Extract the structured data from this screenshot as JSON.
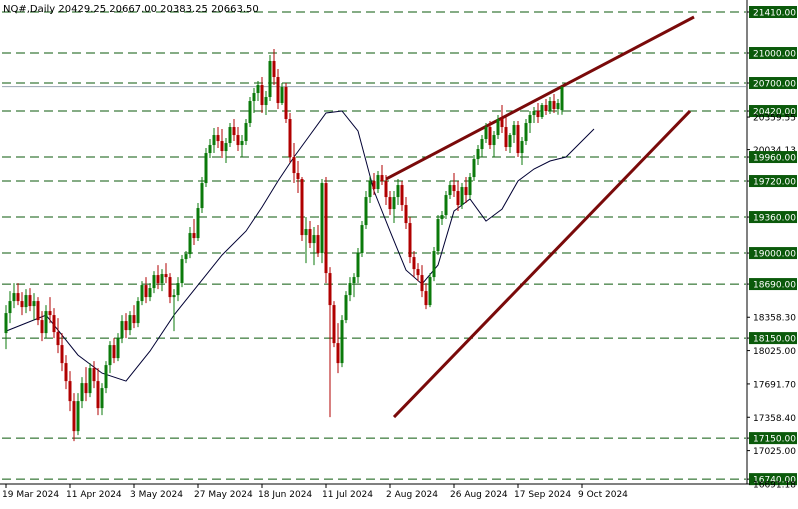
{
  "chart_data": {
    "type": "candlestick",
    "title": "NQ#,Daily  20429.25 20667.00 20383.25 20663.50",
    "xlabel": "",
    "ylabel": "",
    "ylim": [
      16691.18,
      21510
    ],
    "grid": false,
    "colors": {
      "bull": "#0b7a0b",
      "bear": "#b00000",
      "level_line": "#0b5a0b",
      "level_label_bg": "#0b5a0b",
      "trendline": "#7a0a0a",
      "moving_average": "#000033"
    },
    "price_axis_ticks": [
      "21410.00",
      "21000.00",
      "20700.00",
      "20420.00",
      "20359.55",
      "20034.13",
      "19960.00",
      "19720.00",
      "19360.00",
      "19000.00",
      "18690.00",
      "18358.30",
      "18150.00",
      "18025.00",
      "17691.70",
      "17358.40",
      "17150.00",
      "17025.00",
      "16740.00",
      "16691.18"
    ],
    "level_lines": [
      21410,
      21000,
      20700,
      20420,
      19960,
      19720,
      19360,
      19000,
      18690,
      18150,
      17150,
      16740
    ],
    "current_price": 20663.5,
    "x_tick_labels": [
      "19 Mar 2024",
      "11 Apr 2024",
      "3 May 2024",
      "27 May 2024",
      "18 Jun 2024",
      "11 Jul 2024",
      "2 Aug 2024",
      "26 Aug 2024",
      "17 Sep 2024",
      "9 Oct 2024"
    ],
    "x_tick_bar_index": [
      0,
      16,
      32,
      48,
      64,
      80,
      96,
      112,
      128,
      144
    ],
    "bar_count": 148,
    "trendlines": [
      {
        "from": {
          "bar": 95,
          "price": 19740
        },
        "to": {
          "bar": 172,
          "price": 21360
        }
      },
      {
        "from": {
          "bar": 97,
          "price": 17360
        },
        "to": {
          "bar": 171,
          "price": 20420
        }
      }
    ],
    "moving_average": [
      [
        0,
        18220
      ],
      [
        10,
        18380
      ],
      [
        18,
        17980
      ],
      [
        24,
        17800
      ],
      [
        30,
        17720
      ],
      [
        36,
        18020
      ],
      [
        42,
        18380
      ],
      [
        48,
        18680
      ],
      [
        54,
        18980
      ],
      [
        60,
        19220
      ],
      [
        64,
        19460
      ],
      [
        68,
        19720
      ],
      [
        72,
        19960
      ],
      [
        76,
        20180
      ],
      [
        80,
        20400
      ],
      [
        84,
        20420
      ],
      [
        88,
        20220
      ],
      [
        92,
        19620
      ],
      [
        96,
        19220
      ],
      [
        100,
        18830
      ],
      [
        104,
        18690
      ],
      [
        108,
        18880
      ],
      [
        112,
        19420
      ],
      [
        116,
        19540
      ],
      [
        120,
        19320
      ],
      [
        124,
        19440
      ],
      [
        128,
        19720
      ],
      [
        132,
        19840
      ],
      [
        136,
        19920
      ],
      [
        140,
        19960
      ],
      [
        144,
        20120
      ],
      [
        147,
        20240
      ]
    ],
    "candles": [
      [
        18200,
        18480,
        18040,
        18400
      ],
      [
        18400,
        18620,
        18300,
        18520
      ],
      [
        18520,
        18700,
        18450,
        18600
      ],
      [
        18600,
        18700,
        18480,
        18520
      ],
      [
        18520,
        18610,
        18380,
        18460
      ],
      [
        18460,
        18640,
        18400,
        18580
      ],
      [
        18580,
        18650,
        18420,
        18470
      ],
      [
        18470,
        18600,
        18330,
        18520
      ],
      [
        18520,
        18560,
        18280,
        18330
      ],
      [
        18330,
        18420,
        18120,
        18200
      ],
      [
        18200,
        18480,
        18150,
        18420
      ],
      [
        18420,
        18560,
        18300,
        18380
      ],
      [
        18380,
        18450,
        18150,
        18210
      ],
      [
        18210,
        18350,
        18000,
        18080
      ],
      [
        18080,
        18200,
        17820,
        17900
      ],
      [
        17900,
        17980,
        17640,
        17720
      ],
      [
        17720,
        17820,
        17420,
        17520
      ],
      [
        17520,
        17600,
        17120,
        17220
      ],
      [
        17220,
        17600,
        17180,
        17520
      ],
      [
        17520,
        17760,
        17450,
        17700
      ],
      [
        17700,
        17860,
        17520,
        17600
      ],
      [
        17600,
        17900,
        17560,
        17850
      ],
      [
        17850,
        17920,
        17650,
        17720
      ],
      [
        17720,
        17850,
        17380,
        17450
      ],
      [
        17450,
        17700,
        17380,
        17650
      ],
      [
        17650,
        17920,
        17600,
        17880
      ],
      [
        17880,
        18120,
        17800,
        18080
      ],
      [
        18080,
        18150,
        17900,
        17950
      ],
      [
        17950,
        18200,
        17920,
        18150
      ],
      [
        18150,
        18380,
        18100,
        18320
      ],
      [
        18320,
        18400,
        18150,
        18230
      ],
      [
        18230,
        18420,
        18180,
        18380
      ],
      [
        18380,
        18480,
        18250,
        18300
      ],
      [
        18300,
        18560,
        18260,
        18520
      ],
      [
        18520,
        18720,
        18480,
        18680
      ],
      [
        18680,
        18760,
        18500,
        18560
      ],
      [
        18560,
        18700,
        18520,
        18650
      ],
      [
        18650,
        18820,
        18600,
        18780
      ],
      [
        18780,
        18880,
        18640,
        18700
      ],
      [
        18700,
        18840,
        18620,
        18790
      ],
      [
        18790,
        18900,
        18700,
        18760
      ],
      [
        18760,
        18800,
        18500,
        18560
      ],
      [
        18560,
        18640,
        18220,
        18580
      ],
      [
        18580,
        18760,
        18520,
        18700
      ],
      [
        18700,
        18980,
        18660,
        18940
      ],
      [
        18940,
        19020,
        18900,
        18990
      ],
      [
        18990,
        19260,
        18950,
        19200
      ],
      [
        19200,
        19340,
        19080,
        19150
      ],
      [
        19150,
        19500,
        19120,
        19450
      ],
      [
        19450,
        19760,
        19400,
        19700
      ],
      [
        19700,
        20050,
        19660,
        20000
      ],
      [
        20000,
        20140,
        19950,
        20080
      ],
      [
        20080,
        20250,
        20000,
        20180
      ],
      [
        20180,
        20260,
        20050,
        20120
      ],
      [
        20120,
        20240,
        19950,
        20020
      ],
      [
        20020,
        20150,
        19900,
        20100
      ],
      [
        20100,
        20300,
        20060,
        20260
      ],
      [
        20260,
        20340,
        20120,
        20180
      ],
      [
        20180,
        20260,
        20020,
        20080
      ],
      [
        20080,
        20180,
        19960,
        20120
      ],
      [
        20120,
        20340,
        20080,
        20300
      ],
      [
        20300,
        20560,
        20260,
        20520
      ],
      [
        20520,
        20650,
        20400,
        20600
      ],
      [
        20600,
        20720,
        20520,
        20680
      ],
      [
        20680,
        20760,
        20400,
        20480
      ],
      [
        20480,
        20620,
        20380,
        20560
      ],
      [
        20560,
        20980,
        20520,
        20920
      ],
      [
        20920,
        21040,
        20680,
        20760
      ],
      [
        20760,
        20840,
        20440,
        20500
      ],
      [
        20500,
        20700,
        20480,
        20660
      ],
      [
        20660,
        20700,
        20300,
        20340
      ],
      [
        20340,
        20400,
        19900,
        19960
      ],
      [
        19960,
        20100,
        19700,
        19800
      ],
      [
        19800,
        19920,
        19600,
        19740
      ],
      [
        19740,
        19760,
        19120,
        19180
      ],
      [
        19180,
        19360,
        18900,
        19240
      ],
      [
        19240,
        19320,
        19050,
        19100
      ],
      [
        19100,
        19260,
        18880,
        19180
      ],
      [
        19180,
        19280,
        18960,
        19000
      ],
      [
        19000,
        19740,
        18900,
        19700
      ],
      [
        19700,
        19760,
        18700,
        18800
      ],
      [
        18800,
        18860,
        17360,
        18480
      ],
      [
        18480,
        18520,
        18060,
        18100
      ],
      [
        18100,
        18300,
        17800,
        17900
      ],
      [
        17900,
        18380,
        17860,
        18330
      ],
      [
        18330,
        18620,
        18300,
        18580
      ],
      [
        18580,
        18760,
        18520,
        18700
      ],
      [
        18700,
        18800,
        18560,
        18760
      ],
      [
        18760,
        19050,
        18700,
        19000
      ],
      [
        19000,
        19320,
        18960,
        19280
      ],
      [
        19280,
        19620,
        19240,
        19560
      ],
      [
        19560,
        19760,
        19500,
        19720
      ],
      [
        19720,
        19800,
        19580,
        19640
      ],
      [
        19640,
        19820,
        19600,
        19780
      ],
      [
        19780,
        19880,
        19680,
        19720
      ],
      [
        19720,
        19780,
        19480,
        19560
      ],
      [
        19560,
        19620,
        19380,
        19440
      ],
      [
        19440,
        19620,
        19300,
        19560
      ],
      [
        19560,
        19740,
        19480,
        19680
      ],
      [
        19680,
        19720,
        19420,
        19480
      ],
      [
        19480,
        19560,
        19240,
        19300
      ],
      [
        19300,
        19360,
        18900,
        18960
      ],
      [
        18960,
        19020,
        18760,
        18840
      ],
      [
        18840,
        18900,
        18720,
        18780
      ],
      [
        18780,
        18880,
        18560,
        18620
      ],
      [
        18620,
        18700,
        18440,
        18480
      ],
      [
        18480,
        18800,
        18460,
        18760
      ],
      [
        18760,
        19060,
        18720,
        19020
      ],
      [
        19020,
        19380,
        18980,
        19340
      ],
      [
        19340,
        19420,
        19280,
        19380
      ],
      [
        19380,
        19620,
        19340,
        19580
      ],
      [
        19580,
        19720,
        19540,
        19680
      ],
      [
        19680,
        19800,
        19560,
        19620
      ],
      [
        19620,
        19720,
        19420,
        19480
      ],
      [
        19480,
        19700,
        19440,
        19660
      ],
      [
        19660,
        19760,
        19500,
        19580
      ],
      [
        19580,
        19800,
        19540,
        19760
      ],
      [
        19760,
        19980,
        19720,
        19940
      ],
      [
        19940,
        20080,
        19880,
        20040
      ],
      [
        20040,
        20180,
        19960,
        20140
      ],
      [
        20140,
        20300,
        20100,
        20260
      ],
      [
        20260,
        20320,
        20040,
        20080
      ],
      [
        20080,
        20220,
        19960,
        20180
      ],
      [
        20180,
        20380,
        20140,
        20340
      ],
      [
        20340,
        20480,
        20200,
        20260
      ],
      [
        20260,
        20360,
        20020,
        20060
      ],
      [
        20060,
        20200,
        20000,
        20180
      ],
      [
        20180,
        20320,
        20100,
        20280
      ],
      [
        20280,
        20320,
        19960,
        20000
      ],
      [
        20000,
        20160,
        19880,
        20120
      ],
      [
        20120,
        20340,
        20080,
        20300
      ],
      [
        20300,
        20420,
        20200,
        20380
      ],
      [
        20380,
        20460,
        20300,
        20420
      ],
      [
        20420,
        20500,
        20300,
        20360
      ],
      [
        20360,
        20500,
        20340,
        20480
      ],
      [
        20480,
        20540,
        20380,
        20420
      ],
      [
        20420,
        20560,
        20390,
        20520
      ],
      [
        20520,
        20590,
        20400,
        20440
      ],
      [
        20440,
        20540,
        20383,
        20500
      ],
      [
        20429,
        20667,
        20383,
        20663
      ]
    ]
  }
}
